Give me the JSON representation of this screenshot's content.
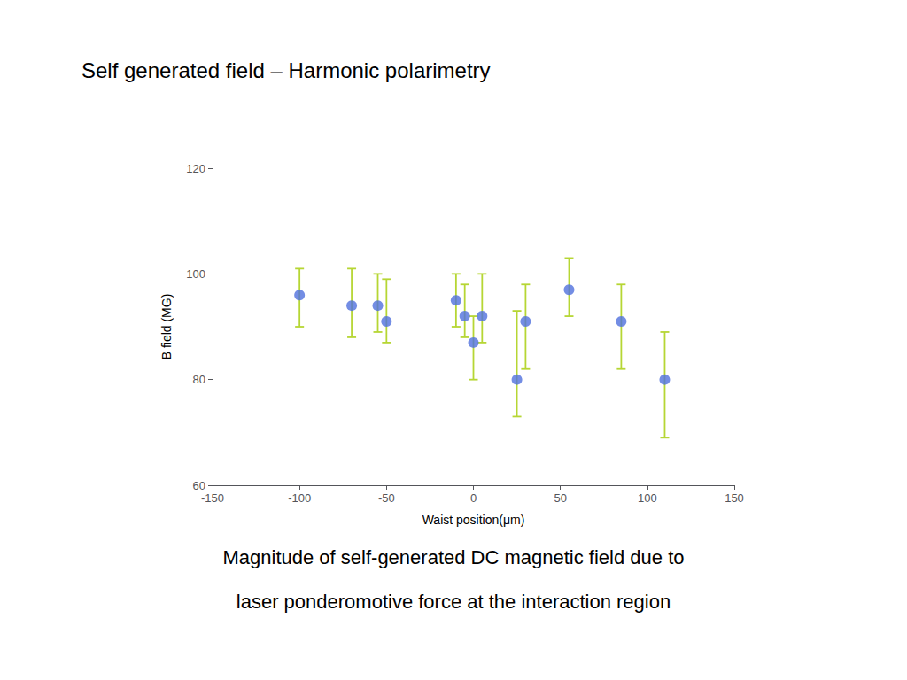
{
  "chart_data": {
    "type": "scatter",
    "title": "Self generated field – Harmonic polarimetry",
    "xlabel": "Waist position(μm)",
    "ylabel": "B field (MG)",
    "x": [
      -100,
      -70,
      -55,
      -50,
      -10,
      -5,
      0,
      5,
      25,
      30,
      55,
      85,
      110
    ],
    "values": [
      96,
      94,
      94,
      91,
      95,
      92,
      87,
      92,
      80,
      91,
      97,
      91,
      80
    ],
    "err_lo": [
      6,
      6,
      5,
      4,
      5,
      4,
      7,
      5,
      7,
      9,
      5,
      9,
      11
    ],
    "err_hi": [
      5,
      7,
      6,
      8,
      5,
      6,
      5,
      8,
      13,
      7,
      6,
      7,
      9
    ],
    "xlim": [
      -150,
      150
    ],
    "xticks": [
      -150,
      -100,
      -50,
      0,
      50,
      100,
      150
    ],
    "ylim": [
      60,
      120
    ],
    "yticks": [
      60,
      80,
      100,
      120
    ],
    "grid": false,
    "annotations": [
      "Magnitude of self-generated DC magnetic field due to",
      "laser ponderomotive force at the interaction region"
    ]
  }
}
